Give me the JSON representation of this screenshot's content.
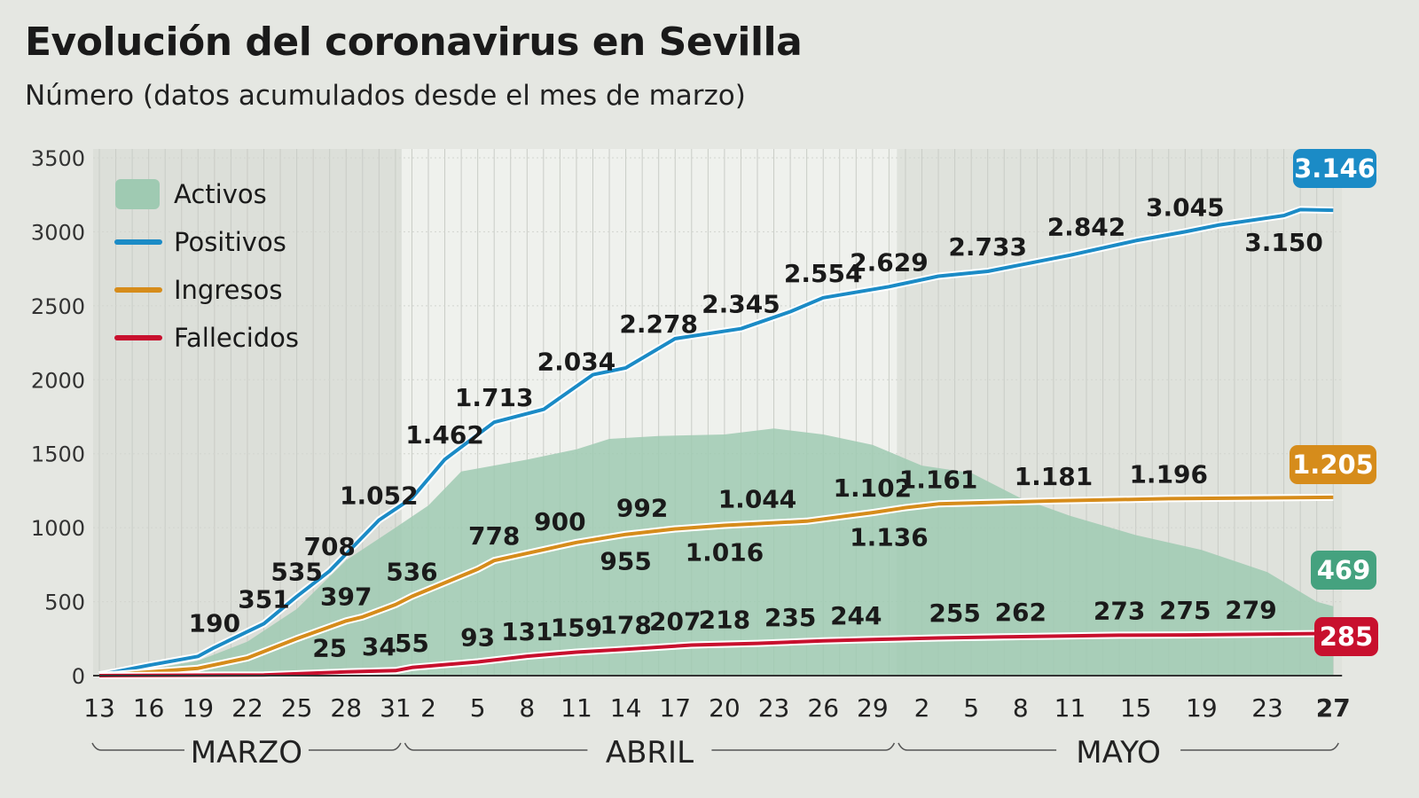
{
  "title": "Evolución del coronavirus en Sevilla",
  "subtitle": "Número (datos acumulados desde el mes de marzo)",
  "colors": {
    "positivos": "#1b8bc6",
    "ingresos": "#d68c1b",
    "fallecidos": "#c8102e",
    "activos": "#9fcab2",
    "activos_badge": "#45a27f"
  },
  "chart_data": {
    "type": "line",
    "title": "Evolución del coronavirus en Sevilla",
    "subtitle": "Número (datos acumulados desde el mes de marzo)",
    "ylim": [
      0,
      3500
    ],
    "yticks": [
      0,
      500,
      1000,
      1500,
      2000,
      2500,
      3000,
      3500
    ],
    "grid": "vertical daily lines",
    "legend": "top-left",
    "x_range": [
      "03-13",
      "05-27"
    ],
    "xticks": [
      {
        "d": "03-13",
        "label": "13"
      },
      {
        "d": "03-16",
        "label": "16"
      },
      {
        "d": "03-19",
        "label": "19"
      },
      {
        "d": "03-22",
        "label": "22"
      },
      {
        "d": "03-25",
        "label": "25"
      },
      {
        "d": "03-28",
        "label": "28"
      },
      {
        "d": "03-31",
        "label": "31"
      },
      {
        "d": "04-02",
        "label": "2"
      },
      {
        "d": "04-05",
        "label": "5"
      },
      {
        "d": "04-08",
        "label": "8"
      },
      {
        "d": "04-11",
        "label": "11"
      },
      {
        "d": "04-14",
        "label": "14"
      },
      {
        "d": "04-17",
        "label": "17"
      },
      {
        "d": "04-20",
        "label": "20"
      },
      {
        "d": "04-23",
        "label": "23"
      },
      {
        "d": "04-26",
        "label": "26"
      },
      {
        "d": "04-29",
        "label": "29"
      },
      {
        "d": "05-02",
        "label": "2"
      },
      {
        "d": "05-05",
        "label": "5"
      },
      {
        "d": "05-08",
        "label": "8"
      },
      {
        "d": "05-11",
        "label": "11"
      },
      {
        "d": "05-15",
        "label": "15"
      },
      {
        "d": "05-19",
        "label": "19"
      },
      {
        "d": "05-23",
        "label": "23"
      },
      {
        "d": "05-27",
        "label": "27"
      }
    ],
    "months": [
      {
        "label": "MARZO",
        "from": "03-13",
        "to": "03-31"
      },
      {
        "label": "ABRIL",
        "from": "04-01",
        "to": "04-30"
      },
      {
        "label": "MAYO",
        "from": "05-01",
        "to": "05-27"
      }
    ],
    "series": [
      {
        "name": "Activos",
        "type": "area",
        "color": "#9fcab2",
        "end_label": "469",
        "points": [
          [
            "03-13",
            0
          ],
          [
            "03-16",
            40
          ],
          [
            "03-19",
            100
          ],
          [
            "03-22",
            230
          ],
          [
            "03-25",
            450
          ],
          [
            "03-28",
            780
          ],
          [
            "03-31",
            1000
          ],
          [
            "04-02",
            1150
          ],
          [
            "04-04",
            1380
          ],
          [
            "04-08",
            1460
          ],
          [
            "04-11",
            1530
          ],
          [
            "04-13",
            1600
          ],
          [
            "04-16",
            1620
          ],
          [
            "04-20",
            1630
          ],
          [
            "04-23",
            1670
          ],
          [
            "04-26",
            1630
          ],
          [
            "04-29",
            1560
          ],
          [
            "05-02",
            1420
          ],
          [
            "05-05",
            1370
          ],
          [
            "05-08",
            1200
          ],
          [
            "05-11",
            1080
          ],
          [
            "05-15",
            950
          ],
          [
            "05-19",
            850
          ],
          [
            "05-23",
            700
          ],
          [
            "05-26",
            500
          ],
          [
            "05-27",
            469
          ]
        ],
        "labels": []
      },
      {
        "name": "Positivos",
        "type": "line",
        "color": "#1b8bc6",
        "end_label": "3.146",
        "points": [
          [
            "03-13",
            5
          ],
          [
            "03-16",
            70
          ],
          [
            "03-19",
            130
          ],
          [
            "03-20",
            190
          ],
          [
            "03-23",
            351
          ],
          [
            "03-25",
            535
          ],
          [
            "03-27",
            708
          ],
          [
            "03-30",
            1052
          ],
          [
            "04-01",
            1200
          ],
          [
            "04-03",
            1462
          ],
          [
            "04-06",
            1713
          ],
          [
            "04-09",
            1800
          ],
          [
            "04-12",
            2034
          ],
          [
            "04-14",
            2080
          ],
          [
            "04-17",
            2278
          ],
          [
            "04-21",
            2345
          ],
          [
            "04-24",
            2460
          ],
          [
            "04-26",
            2554
          ],
          [
            "04-30",
            2629
          ],
          [
            "05-03",
            2700
          ],
          [
            "05-06",
            2733
          ],
          [
            "05-11",
            2842
          ],
          [
            "05-15",
            2940
          ],
          [
            "05-18",
            3000
          ],
          [
            "05-20",
            3045
          ],
          [
            "05-24",
            3110
          ],
          [
            "05-25",
            3150
          ],
          [
            "05-27",
            3146
          ]
        ],
        "labels": [
          [
            "03-20",
            "190",
            -1
          ],
          [
            "03-23",
            "351",
            -1
          ],
          [
            "03-25",
            "535",
            -1
          ],
          [
            "03-27",
            "708",
            -1
          ],
          [
            "03-30",
            "1.052",
            -1
          ],
          [
            "04-03",
            "1.462",
            -1
          ],
          [
            "04-06",
            "1.713",
            -1
          ],
          [
            "04-11",
            "2.034",
            -1
          ],
          [
            "04-16",
            "2.278",
            -1
          ],
          [
            "04-21",
            "2.345",
            -1
          ],
          [
            "04-26",
            "2.554",
            -1
          ],
          [
            "04-30",
            "2.629",
            -1
          ],
          [
            "05-06",
            "2.733",
            -1
          ],
          [
            "05-12",
            "2.842",
            -1
          ],
          [
            "05-18",
            "3.045",
            -1
          ],
          [
            "05-24",
            "3.150",
            1
          ]
        ]
      },
      {
        "name": "Ingresos",
        "type": "line",
        "color": "#d68c1b",
        "end_label": "1.205",
        "points": [
          [
            "03-13",
            0
          ],
          [
            "03-19",
            50
          ],
          [
            "03-22",
            120
          ],
          [
            "03-25",
            250
          ],
          [
            "03-28",
            370
          ],
          [
            "03-29",
            397
          ],
          [
            "03-31",
            480
          ],
          [
            "04-01",
            536
          ],
          [
            "04-05",
            720
          ],
          [
            "04-06",
            778
          ],
          [
            "04-11",
            900
          ],
          [
            "04-14",
            955
          ],
          [
            "04-17",
            992
          ],
          [
            "04-20",
            1016
          ],
          [
            "04-25",
            1044
          ],
          [
            "04-29",
            1102
          ],
          [
            "05-01",
            1136
          ],
          [
            "05-03",
            1161
          ],
          [
            "05-10",
            1181
          ],
          [
            "05-17",
            1196
          ],
          [
            "05-27",
            1205
          ]
        ],
        "labels": [
          [
            "03-28",
            "397",
            -1
          ],
          [
            "04-01",
            "536",
            -1
          ],
          [
            "04-06",
            "778",
            -1
          ],
          [
            "04-10",
            "900",
            -1
          ],
          [
            "04-14",
            "955",
            1
          ],
          [
            "04-15",
            "992",
            -1
          ],
          [
            "04-20",
            "1.016",
            1
          ],
          [
            "04-22",
            "1.044",
            -1
          ],
          [
            "04-29",
            "1.102",
            -1
          ],
          [
            "04-30",
            "1.136",
            1
          ],
          [
            "05-03",
            "1.161",
            -1
          ],
          [
            "05-10",
            "1.181",
            -1
          ],
          [
            "05-17",
            "1.196",
            -1
          ]
        ]
      },
      {
        "name": "Fallecidos",
        "type": "line",
        "color": "#c8102e",
        "end_label": "285",
        "points": [
          [
            "03-13",
            0
          ],
          [
            "03-23",
            5
          ],
          [
            "03-28",
            25
          ],
          [
            "03-31",
            34
          ],
          [
            "04-01",
            55
          ],
          [
            "04-05",
            93
          ],
          [
            "04-08",
            131
          ],
          [
            "04-11",
            159
          ],
          [
            "04-14",
            178
          ],
          [
            "04-18",
            207
          ],
          [
            "04-22",
            218
          ],
          [
            "04-26",
            235
          ],
          [
            "04-29",
            244
          ],
          [
            "05-03",
            255
          ],
          [
            "05-07",
            262
          ],
          [
            "05-14",
            273
          ],
          [
            "05-18",
            275
          ],
          [
            "05-22",
            279
          ],
          [
            "05-27",
            285
          ]
        ],
        "labels": [
          [
            "03-27",
            "25",
            -1
          ],
          [
            "03-30",
            "34",
            -1
          ],
          [
            "04-01",
            "55",
            -1
          ],
          [
            "04-05",
            "93",
            -1
          ],
          [
            "04-08",
            "131",
            -1
          ],
          [
            "04-11",
            "159",
            -1
          ],
          [
            "04-14",
            "178",
            -1
          ],
          [
            "04-17",
            "207",
            -1
          ],
          [
            "04-20",
            "218",
            -1
          ],
          [
            "04-24",
            "235",
            -1
          ],
          [
            "04-28",
            "244",
            -1
          ],
          [
            "05-04",
            "255",
            -1
          ],
          [
            "05-08",
            "262",
            -1
          ],
          [
            "05-14",
            "273",
            -1
          ],
          [
            "05-18",
            "275",
            -1
          ],
          [
            "05-22",
            "279",
            -1
          ]
        ]
      }
    ]
  }
}
